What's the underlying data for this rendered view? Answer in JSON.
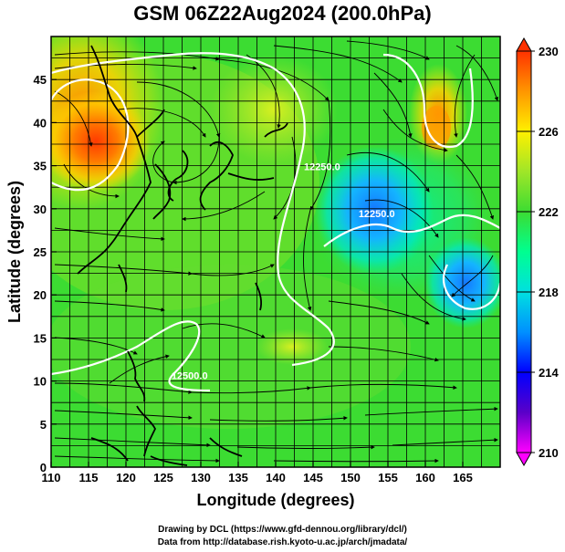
{
  "title": "GSM 06Z22Aug2024 (200.0hPa)",
  "credits": {
    "line1": "Drawing by DCL (https://www.gfd-dennou.org/library/dcl/)",
    "line2": "Data from http://database.rish.kyoto-u.ac.jp/arch/jmadata/"
  },
  "map": {
    "xlabel": "Longitude (degrees)",
    "ylabel": "Latitude  (degrees)",
    "lon_range": [
      110,
      170
    ],
    "lat_range": [
      0,
      50
    ],
    "lon_ticks": [
      "110",
      "115",
      "120",
      "125",
      "130",
      "135",
      "140",
      "145",
      "150",
      "155",
      "160",
      "165"
    ],
    "lat_ticks": [
      "0",
      "5",
      "10",
      "15",
      "20",
      "25",
      "30",
      "35",
      "40",
      "45"
    ],
    "grid": true,
    "contour_labels": [
      {
        "text": "12500.0",
        "lon": 128.5,
        "lat": 10.2
      },
      {
        "text": "12250.0",
        "lon": 146.2,
        "lat": 34.5
      },
      {
        "text": "12250.0",
        "lon": 153.5,
        "lat": 29.0
      }
    ],
    "colorbar": {
      "unit_min": 210,
      "unit_max": 230,
      "labels": [
        "230",
        "226",
        "222",
        "218",
        "214",
        "210"
      ],
      "colors": [
        "#ff00ff",
        "#5a00c8",
        "#0000ff",
        "#0090ff",
        "#00e0e0",
        "#00ff90",
        "#3cdc32",
        "#a0e628",
        "#fff000",
        "#ff9600",
        "#ff3200"
      ]
    },
    "colors": {
      "contour": "#ffffff",
      "streamline": "#000000",
      "coast": "#000000",
      "grid": "#000000"
    }
  }
}
